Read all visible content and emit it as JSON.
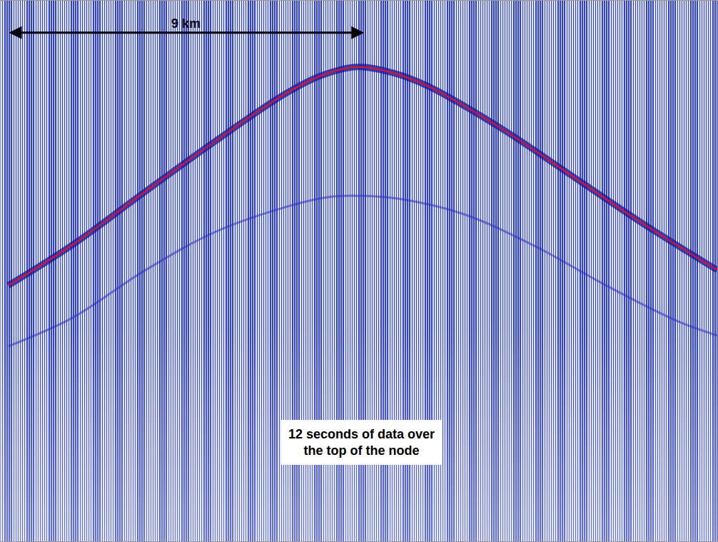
{
  "chart_data": {
    "type": "line",
    "tick_labels": false,
    "grid": false,
    "xlim": [
      -9,
      9.1
    ],
    "ylim": [
      12,
      0
    ],
    "series": [
      {
        "color": "#e8102a",
        "x": [
          -8.81,
          -7.19,
          -5.4,
          -3.6,
          -1.8,
          -0.9,
          0,
          0.9,
          1.8,
          3.6,
          5.4,
          7.19,
          9.1
        ],
        "values": [
          6.32,
          5.42,
          4.27,
          3.13,
          2.06,
          1.66,
          1.47,
          1.6,
          1.9,
          2.81,
          3.87,
          4.93,
          5.98
        ]
      },
      {
        "color": "#2b2bb0",
        "x": [
          -8.81,
          -7.19,
          -5.4,
          -3.6,
          -1.8,
          -0.72,
          0,
          1.08,
          2.7,
          4.5,
          6.29,
          8.09,
          9.1
        ],
        "values": [
          7.67,
          7.04,
          6.01,
          5.14,
          4.58,
          4.36,
          4.33,
          4.4,
          4.74,
          5.45,
          6.32,
          7.11,
          7.43
        ]
      }
    ],
    "annotations": [
      {
        "text": "9 km",
        "x0": -8.82,
        "x1": 0.18,
        "y": 0.71
      },
      {
        "text": [
          "12 seconds of data over",
          "the top of the node"
        ],
        "x": 0.11,
        "y": 9.8
      }
    ]
  }
}
